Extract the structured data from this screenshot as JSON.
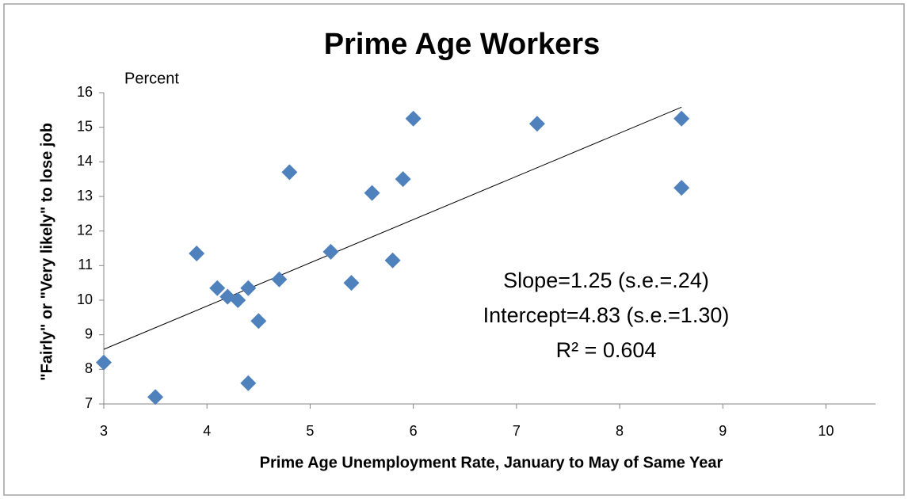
{
  "chart_data": {
    "type": "scatter",
    "title": "Prime Age Workers",
    "y_unit_label": "Percent",
    "x_label": "Prime Age Unemployment Rate, January to May of Same Year",
    "y_label": "\"Fairly\" or  \"Very likely\" to lose job",
    "x": [
      3.0,
      3.5,
      3.9,
      4.1,
      4.2,
      4.3,
      4.4,
      4.4,
      4.5,
      4.7,
      4.8,
      5.2,
      5.4,
      5.6,
      5.9,
      5.8,
      6.0,
      7.2,
      8.6,
      8.6
    ],
    "values": [
      8.2,
      7.2,
      11.35,
      10.35,
      10.1,
      10.0,
      10.35,
      7.6,
      9.4,
      10.6,
      13.7,
      11.4,
      10.5,
      13.1,
      13.5,
      11.15,
      15.25,
      15.1,
      15.25,
      13.25
    ],
    "color": "#4f81bd",
    "trendline": {
      "x": [
        3,
        8.6
      ],
      "y": [
        8.58,
        15.58
      ]
    },
    "annotations": [
      "Slope=1.25 (s.e.=.24)",
      "Intercept=4.83 (s.e.=1.30)",
      "R² = 0.604"
    ],
    "xlim": [
      3,
      10.48
    ],
    "xticks": [
      3,
      4,
      5,
      6,
      7,
      8,
      9,
      10
    ],
    "ylim": [
      7,
      16
    ],
    "yticks": [
      7,
      8,
      9,
      10,
      11,
      12,
      13,
      14,
      15,
      16
    ],
    "grid": false
  }
}
